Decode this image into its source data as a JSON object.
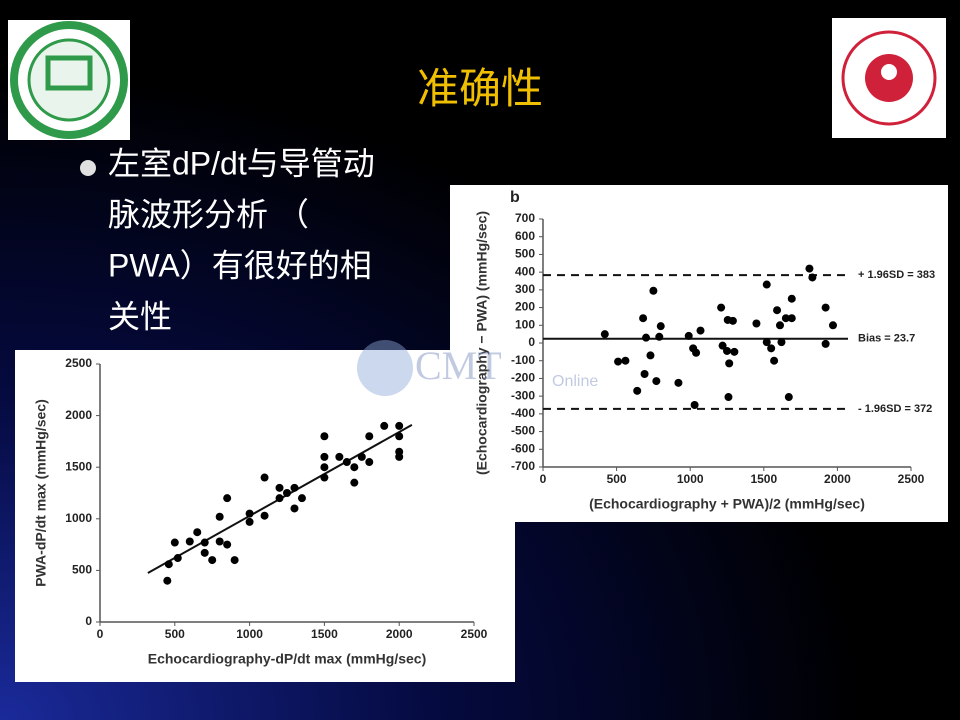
{
  "slide": {
    "title": "准确性",
    "bullet_lines": [
      "左室dP/dt与导管动",
      "脉波形分析 （",
      "PWA）有很好的相",
      "关性"
    ],
    "watermark": [
      "CMT",
      "Online"
    ]
  },
  "chart_data": [
    {
      "type": "scatter",
      "xlabel": "Echocardiography-dP/dt max (mmHg/sec)",
      "ylabel": "PWA-dP/dt max (mmHg/sec)",
      "xlim": [
        0,
        2500
      ],
      "xticks": [
        0,
        500,
        1000,
        1500,
        2000,
        2500
      ],
      "ylim": [
        0,
        2500
      ],
      "yticks": [
        0,
        500,
        1000,
        1500,
        2000,
        2500
      ],
      "color": "#000000",
      "x": [
        450,
        460,
        500,
        520,
        600,
        650,
        700,
        700,
        750,
        800,
        800,
        850,
        850,
        900,
        1000,
        1000,
        1100,
        1100,
        1200,
        1200,
        1250,
        1300,
        1300,
        1350,
        1500,
        1500,
        1500,
        1500,
        1600,
        1650,
        1700,
        1700,
        1750,
        1800,
        1800,
        1900,
        2000,
        2000,
        2000,
        2000
      ],
      "values": [
        400,
        560,
        770,
        620,
        780,
        870,
        670,
        770,
        600,
        780,
        1020,
        750,
        1200,
        600,
        970,
        1050,
        1030,
        1400,
        1200,
        1300,
        1250,
        1300,
        1100,
        1200,
        1400,
        1500,
        1600,
        1800,
        1600,
        1550,
        1350,
        1500,
        1600,
        1550,
        1800,
        1900,
        1600,
        1650,
        1800,
        1900
      ],
      "fit_line": {
        "x": [
          320,
          2085
        ],
        "y": [
          475,
          1910
        ]
      }
    },
    {
      "type": "scatter",
      "panel_label": "b",
      "xlabel": "(Echocardiography + PWA)/2 (mmHg/sec)",
      "ylabel": "(Echocardiography − PWA) (mmHg/sec)",
      "xlim": [
        0,
        2500
      ],
      "xticks": [
        0,
        500,
        1000,
        1500,
        2000,
        2500
      ],
      "ylim": [
        -700,
        700
      ],
      "yticks": [
        -700,
        -600,
        -500,
        -400,
        -300,
        -200,
        -100,
        0,
        100,
        200,
        300,
        400,
        500,
        600,
        700
      ],
      "color": "#000000",
      "x": [
        420,
        510,
        560,
        640,
        680,
        690,
        700,
        730,
        750,
        770,
        800,
        790,
        920,
        990,
        1020,
        1030,
        1040,
        1070,
        1210,
        1220,
        1250,
        1255,
        1260,
        1265,
        1290,
        1300,
        1450,
        1520,
        1520,
        1550,
        1570,
        1590,
        1610,
        1620,
        1650,
        1670,
        1690,
        1690,
        1810,
        1830,
        1920,
        1920,
        1970
      ],
      "values": [
        50,
        -105,
        -100,
        -270,
        140,
        -175,
        30,
        -70,
        295,
        -215,
        95,
        35,
        -225,
        40,
        -30,
        -350,
        -55,
        70,
        200,
        -15,
        -45,
        130,
        -305,
        -115,
        125,
        -50,
        110,
        330,
        5,
        -30,
        -100,
        185,
        100,
        5,
        140,
        -305,
        140,
        250,
        420,
        370,
        200,
        -5,
        100
      ],
      "reference_lines": [
        {
          "label": "+ 1.96SD = 383",
          "value": 383,
          "style": "dashed"
        },
        {
          "label": "Bias = 23.7",
          "value": 23.7,
          "style": "solid"
        },
        {
          "label": "- 1.96SD = 372",
          "value": -372,
          "style": "dashed"
        }
      ]
    }
  ]
}
